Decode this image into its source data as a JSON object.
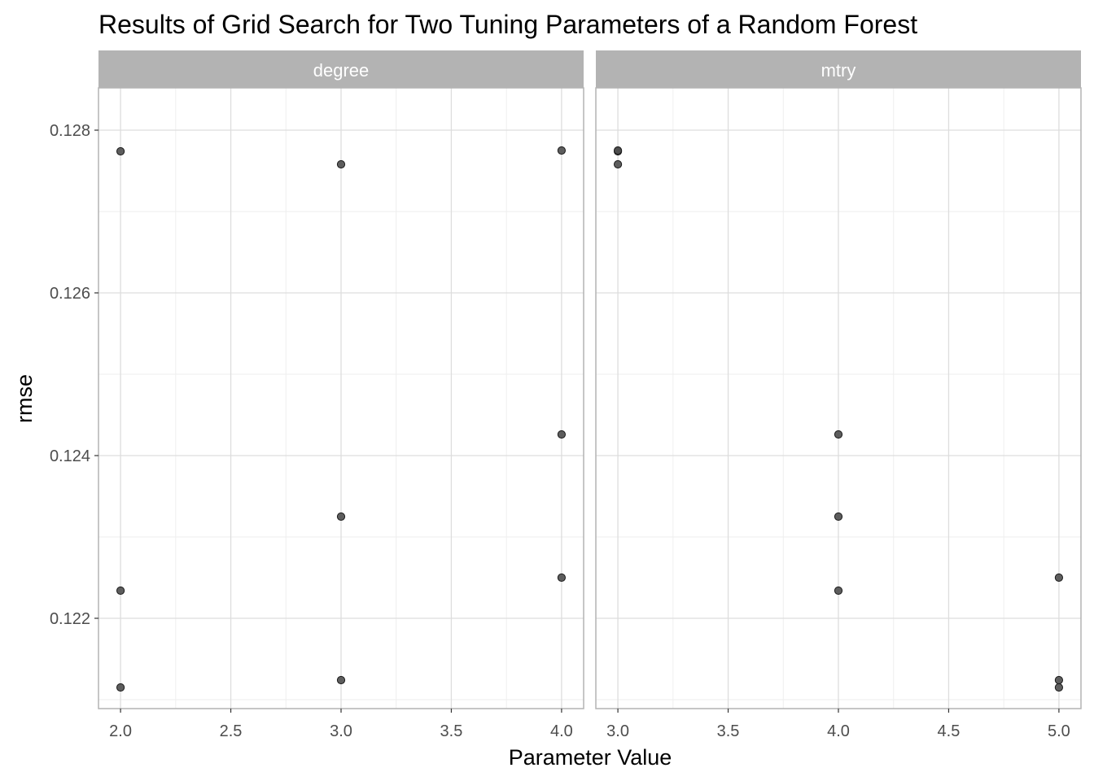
{
  "chart_data": {
    "type": "scatter",
    "title": "Results of Grid Search for Two Tuning Parameters of a Random Forest",
    "xlabel": "Parameter Value",
    "ylabel": "rmse",
    "ylim": [
      0.12089,
      0.12852
    ],
    "y_ticks": [
      0.122,
      0.124,
      0.126,
      0.128
    ],
    "y_tick_labels": [
      "0.122",
      "0.124",
      "0.126",
      "0.128"
    ],
    "grid": true,
    "colors": {
      "point_fill": "#4d4d4d",
      "point_stroke": "#1a1a1a",
      "strip_background": "#b3b3b3",
      "strip_text": "#ffffff",
      "grid_major": "#dddddd",
      "grid_minor": "#eeeeee",
      "panel_border": "#b3b3b3"
    },
    "panels": [
      {
        "strip": "degree",
        "xlim": [
          1.9,
          4.1
        ],
        "x_ticks": [
          2.0,
          2.5,
          3.0,
          3.5,
          4.0
        ],
        "x_tick_labels": [
          "2.0",
          "2.5",
          "3.0",
          "3.5",
          "4.0"
        ],
        "points": [
          {
            "x": 2.0,
            "y": 0.12774
          },
          {
            "x": 2.0,
            "y": 0.12234
          },
          {
            "x": 2.0,
            "y": 0.12115
          },
          {
            "x": 3.0,
            "y": 0.12758
          },
          {
            "x": 3.0,
            "y": 0.12325
          },
          {
            "x": 3.0,
            "y": 0.12124
          },
          {
            "x": 4.0,
            "y": 0.12775
          },
          {
            "x": 4.0,
            "y": 0.12426
          },
          {
            "x": 4.0,
            "y": 0.1225
          }
        ]
      },
      {
        "strip": "mtry",
        "xlim": [
          2.9,
          5.1
        ],
        "x_ticks": [
          3.0,
          3.5,
          4.0,
          4.5,
          5.0
        ],
        "x_tick_labels": [
          "3.0",
          "3.5",
          "4.0",
          "4.5",
          "5.0"
        ],
        "points": [
          {
            "x": 3.0,
            "y": 0.12774
          },
          {
            "x": 3.0,
            "y": 0.12775
          },
          {
            "x": 3.0,
            "y": 0.12758
          },
          {
            "x": 4.0,
            "y": 0.12426
          },
          {
            "x": 4.0,
            "y": 0.12325
          },
          {
            "x": 4.0,
            "y": 0.12234
          },
          {
            "x": 5.0,
            "y": 0.1225
          },
          {
            "x": 5.0,
            "y": 0.12124
          },
          {
            "x": 5.0,
            "y": 0.12115
          }
        ]
      }
    ]
  }
}
